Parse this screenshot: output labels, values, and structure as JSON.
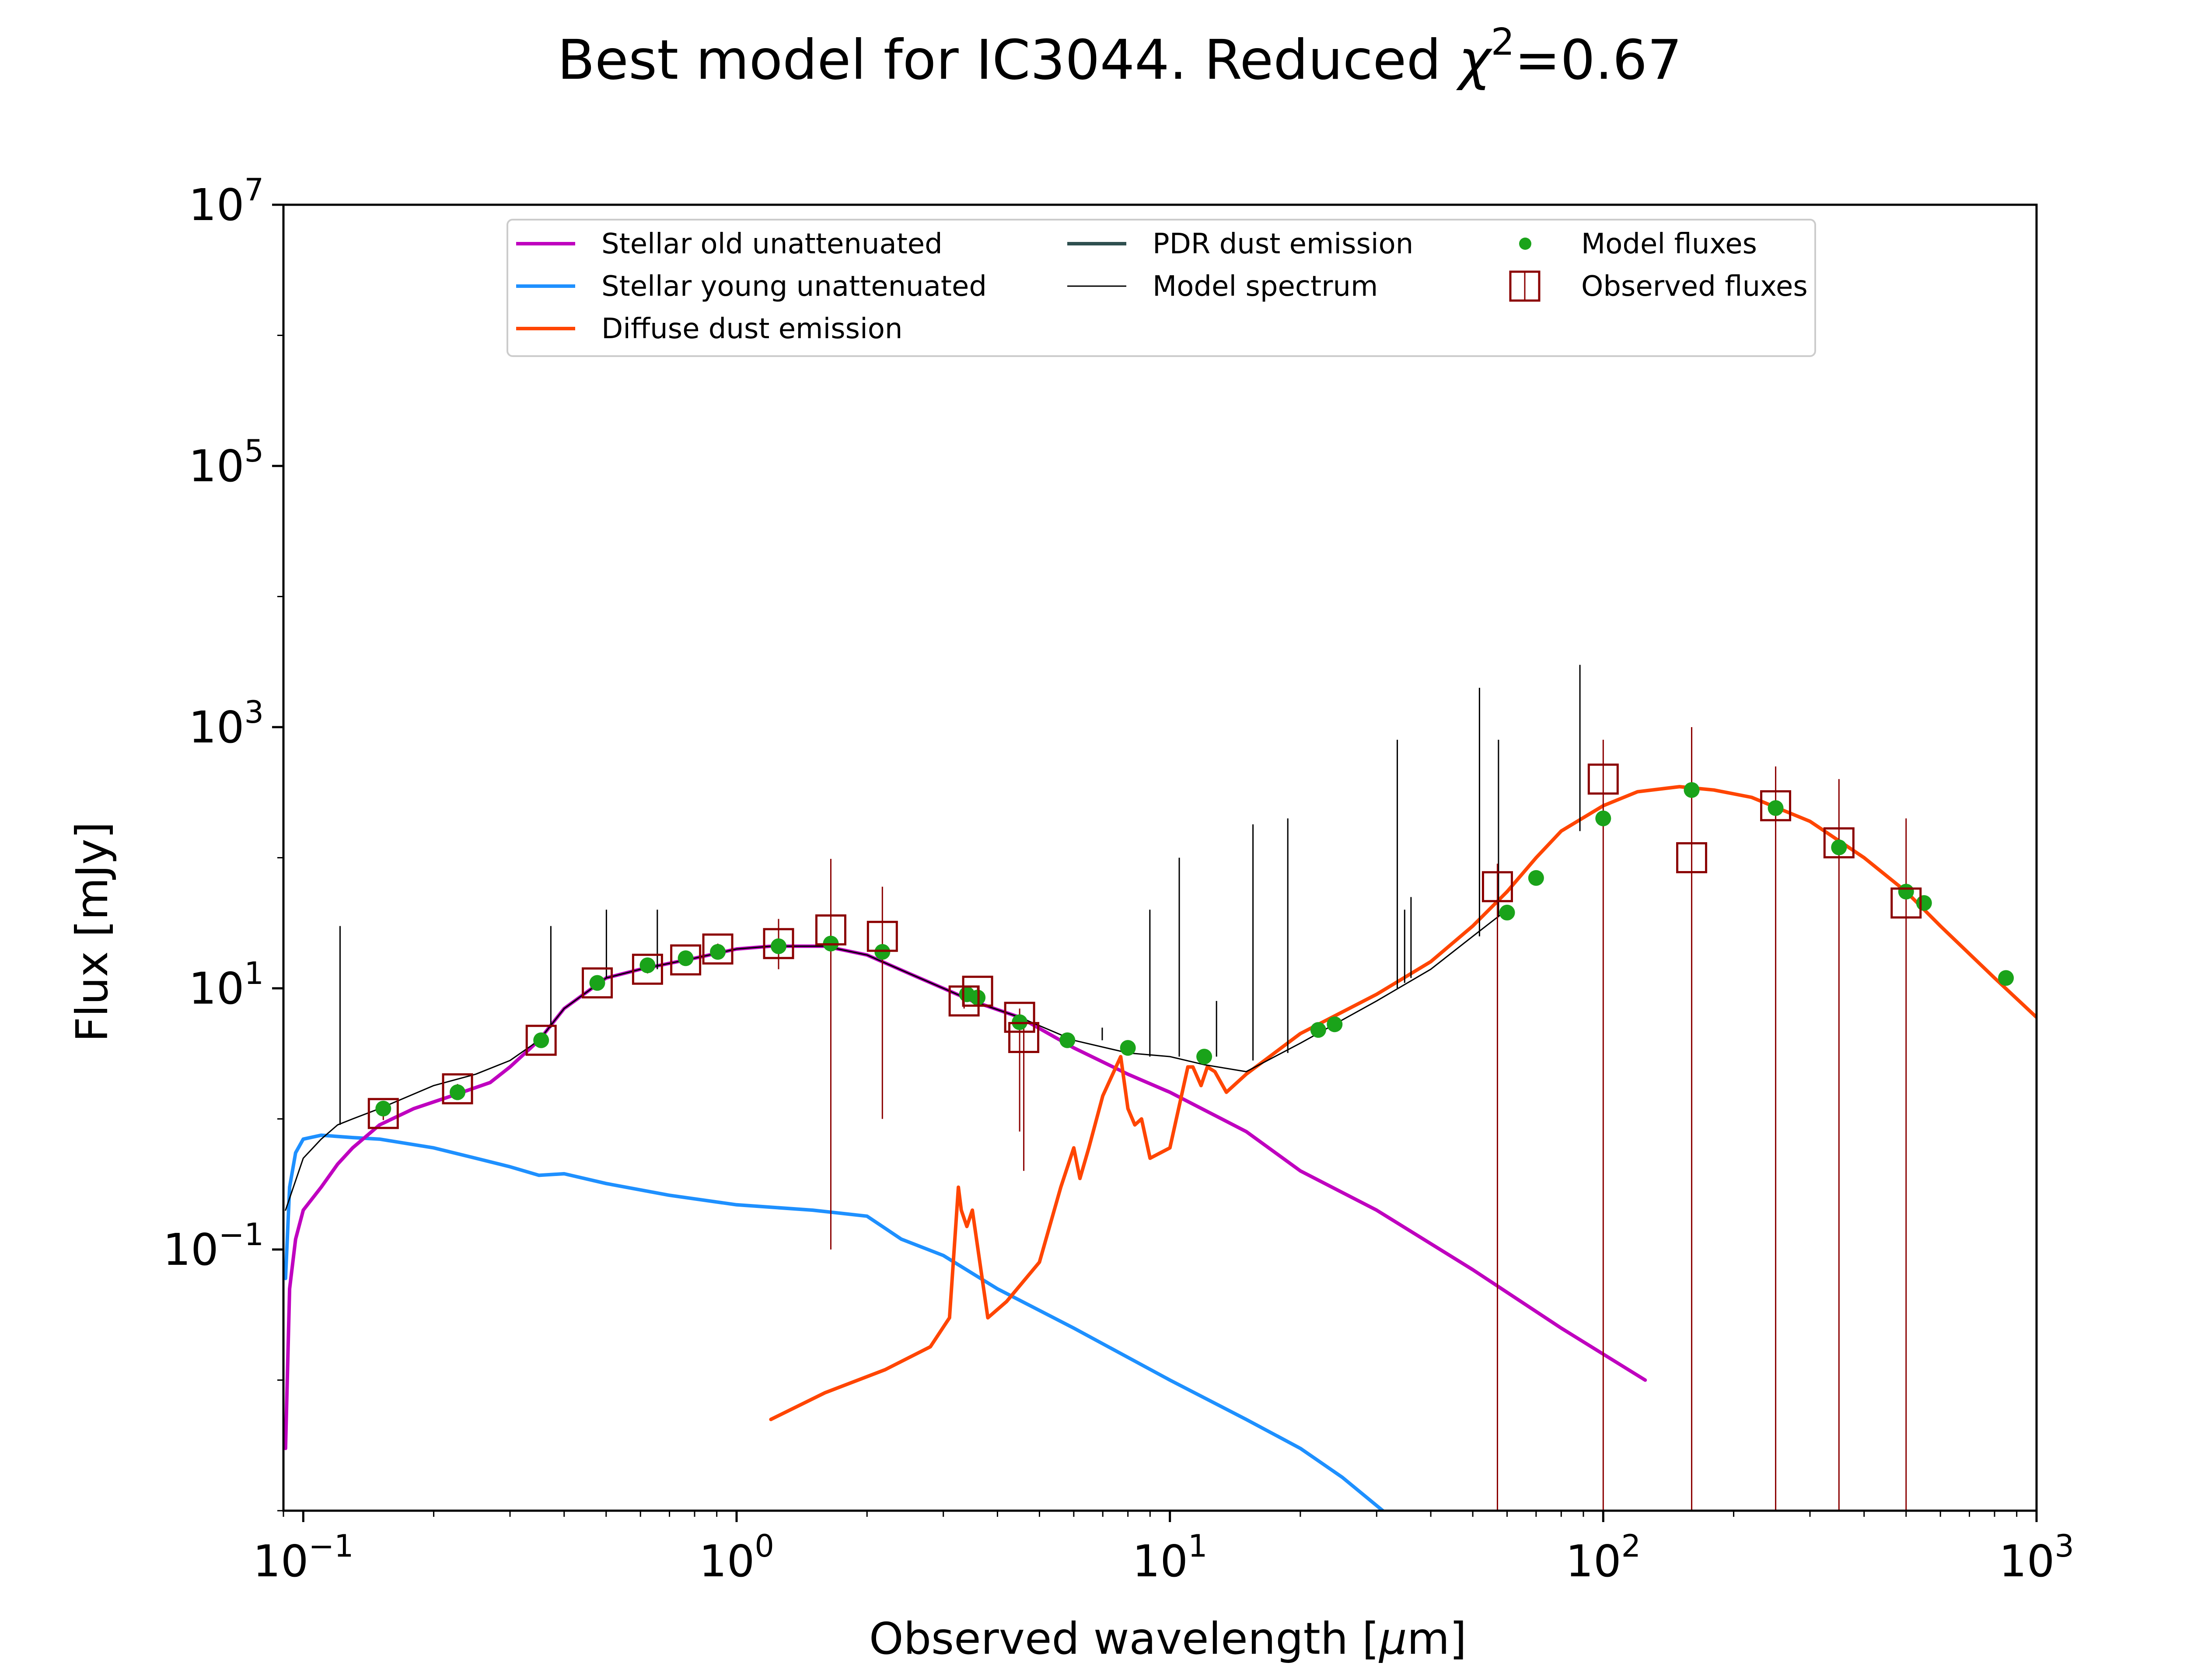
{
  "chart_data": {
    "type": "line",
    "title": "Best model for IC3044. Reduced ",
    "title_symbol": "χ",
    "title_symbol_exp": "2",
    "title_suffix": "=0.67",
    "xlabel": "Observed wavelength [",
    "xlabel_unit_symbol": "μ",
    "xlabel_unit_suffix": "m]",
    "ylabel": "Flux [mJy]",
    "x_scale": "log",
    "y_scale": "log",
    "xlim": [
      0.09,
      1000
    ],
    "ylim": [
      0.001,
      10000000
    ],
    "x_ticks": [
      {
        "value": 0.1,
        "base": "10",
        "exp": "−1"
      },
      {
        "value": 1,
        "base": "10",
        "exp": "0"
      },
      {
        "value": 10,
        "base": "10",
        "exp": "1"
      },
      {
        "value": 100,
        "base": "10",
        "exp": "2"
      },
      {
        "value": 1000,
        "base": "10",
        "exp": "3"
      }
    ],
    "y_ticks": [
      {
        "value": 0.1,
        "base": "10",
        "exp": "−1"
      },
      {
        "value": 10,
        "base": "10",
        "exp": "1"
      },
      {
        "value": 1000,
        "base": "10",
        "exp": "3"
      },
      {
        "value": 100000,
        "base": "10",
        "exp": "5"
      },
      {
        "value": 10000000,
        "base": "10",
        "exp": "7"
      }
    ],
    "grid": false,
    "legend_position": "top-center",
    "legend": [
      {
        "label": "Stellar old unattenuated",
        "kind": "line",
        "color": "#bf00bf"
      },
      {
        "label": "Stellar young unattenuated",
        "kind": "line",
        "color": "#1e90ff"
      },
      {
        "label": "Diffuse dust emission",
        "kind": "line",
        "color": "#ff4500"
      },
      {
        "label": "PDR dust emission",
        "kind": "line",
        "color": "#2f4f4f"
      },
      {
        "label": "Model spectrum",
        "kind": "thinline",
        "color": "#000000"
      },
      {
        "label": "Model fluxes",
        "kind": "dot",
        "color": "#1aa31a"
      },
      {
        "label": "Observed fluxes",
        "kind": "square",
        "color": "#8b0000"
      }
    ],
    "series": [
      {
        "name": "Stellar young unattenuated",
        "color": "#1e90ff",
        "x": [
          0.091,
          0.093,
          0.096,
          0.1,
          0.11,
          0.13,
          0.15,
          0.2,
          0.25,
          0.3,
          0.35,
          0.4,
          0.5,
          0.7,
          1.0,
          1.5,
          2.0,
          2.4,
          3.0,
          4.0,
          6.0,
          10,
          15,
          20,
          25,
          31
        ],
        "y": [
          0.06,
          0.3,
          0.55,
          0.7,
          0.75,
          0.72,
          0.7,
          0.6,
          0.5,
          0.43,
          0.37,
          0.38,
          0.32,
          0.26,
          0.22,
          0.2,
          0.18,
          0.12,
          0.09,
          0.05,
          0.025,
          0.01,
          0.005,
          0.003,
          0.0018,
          0.001
        ]
      },
      {
        "name": "Stellar old unattenuated",
        "color": "#bf00bf",
        "x": [
          0.091,
          0.093,
          0.096,
          0.1,
          0.11,
          0.12,
          0.13,
          0.15,
          0.18,
          0.22,
          0.27,
          0.3,
          0.35,
          0.4,
          0.5,
          0.6,
          0.8,
          1.0,
          1.2,
          1.6,
          2.0,
          2.5,
          3.0,
          3.5,
          4.5,
          6,
          8,
          10,
          15,
          20,
          30,
          50,
          80,
          125
        ],
        "y": [
          0.003,
          0.05,
          0.12,
          0.2,
          0.3,
          0.45,
          0.6,
          0.9,
          1.2,
          1.5,
          1.9,
          2.5,
          4,
          7,
          12,
          14,
          17,
          20,
          21,
          21,
          18,
          13,
          10,
          8,
          6,
          3.5,
          2.2,
          1.6,
          0.8,
          0.4,
          0.2,
          0.07,
          0.025,
          0.01
        ]
      },
      {
        "name": "Diffuse dust emission",
        "color": "#ff4500",
        "x": [
          1.2,
          1.6,
          2.2,
          2.8,
          3.1,
          3.25,
          3.3,
          3.4,
          3.5,
          3.8,
          4.2,
          5,
          5.6,
          6.0,
          6.2,
          6.5,
          7.0,
          7.7,
          8.0,
          8.3,
          8.6,
          9.0,
          10.0,
          11.0,
          11.3,
          11.8,
          12.2,
          12.7,
          13.5,
          15,
          20,
          30,
          40,
          50,
          60,
          70,
          80,
          100,
          120,
          150,
          180,
          220,
          300,
          400,
          500,
          600,
          800,
          1000
        ],
        "y": [
          0.005,
          0.008,
          0.012,
          0.018,
          0.03,
          0.3,
          0.2,
          0.15,
          0.2,
          0.03,
          0.04,
          0.08,
          0.3,
          0.6,
          0.35,
          0.6,
          1.5,
          3,
          1.2,
          0.9,
          1.0,
          0.5,
          0.6,
          2.5,
          2.5,
          1.8,
          2.5,
          2.3,
          1.6,
          2.2,
          4.5,
          9,
          16,
          30,
          55,
          100,
          160,
          250,
          320,
          350,
          330,
          290,
          190,
          100,
          55,
          30,
          12,
          6
        ]
      },
      {
        "name": "Model spectrum",
        "color": "#000000",
        "x": [
          0.091,
          0.1,
          0.11,
          0.12,
          0.13,
          0.15,
          0.2,
          0.25,
          0.3,
          0.35,
          0.4,
          0.5,
          0.6,
          0.8,
          1.0,
          1.2,
          1.6,
          2.0,
          2.5,
          3.0,
          3.5,
          4.5,
          6,
          8,
          10,
          12,
          15,
          20,
          30,
          40,
          50,
          60
        ],
        "y": [
          0.2,
          0.5,
          0.7,
          0.9,
          1.0,
          1.2,
          1.8,
          2.2,
          2.8,
          4,
          7,
          12,
          14,
          17,
          20,
          21,
          21,
          18,
          13,
          10,
          8,
          6,
          4,
          3.2,
          3,
          2.6,
          2.3,
          3.8,
          8,
          14,
          25,
          40
        ]
      }
    ],
    "emission_lines": [
      {
        "x": 0.1216,
        "base": 0.9,
        "peak": 30
      },
      {
        "x": 0.3727,
        "base": 5,
        "peak": 30
      },
      {
        "x": 0.5007,
        "base": 12,
        "peak": 40
      },
      {
        "x": 0.6563,
        "base": 14,
        "peak": 40
      },
      {
        "x": 6.98,
        "base": 4,
        "peak": 5
      },
      {
        "x": 8.99,
        "base": 3,
        "peak": 40
      },
      {
        "x": 10.51,
        "base": 3,
        "peak": 100
      },
      {
        "x": 12.81,
        "base": 3,
        "peak": 8
      },
      {
        "x": 15.55,
        "base": 2.8,
        "peak": 180
      },
      {
        "x": 18.71,
        "base": 3.2,
        "peak": 200
      },
      {
        "x": 33.48,
        "base": 10,
        "peak": 800
      },
      {
        "x": 34.81,
        "base": 11,
        "peak": 40
      },
      {
        "x": 36.01,
        "base": 12,
        "peak": 50
      },
      {
        "x": 51.81,
        "base": 25,
        "peak": 2000
      },
      {
        "x": 57.32,
        "base": 35,
        "peak": 800
      },
      {
        "x": 88.36,
        "base": 160,
        "peak": 3000
      }
    ],
    "model_fluxes": {
      "x": [
        0.153,
        0.227,
        0.354,
        0.477,
        0.623,
        0.763,
        0.905,
        1.25,
        1.65,
        2.17,
        3.4,
        3.6,
        4.5,
        5.8,
        8.0,
        12,
        22,
        24,
        60,
        70,
        100,
        160,
        250,
        350,
        500,
        550,
        850
      ],
      "y": [
        1.2,
        1.6,
        4,
        11,
        15,
        17,
        19,
        21,
        22,
        19,
        9,
        8.5,
        5.5,
        4,
        3.5,
        3,
        4.8,
        5.3,
        38,
        70,
        200,
        330,
        240,
        120,
        55,
        45,
        12
      ]
    },
    "observed_fluxes": [
      {
        "x": 0.153,
        "y": 1.1,
        "err": [
          0.12,
          0.12
        ]
      },
      {
        "x": 0.227,
        "y": 1.7,
        "err": [
          0.15,
          0.15
        ]
      },
      {
        "x": 0.354,
        "y": 4,
        "err": [
          0.4,
          0.4
        ]
      },
      {
        "x": 0.477,
        "y": 11,
        "err": [
          0.8,
          0.8
        ]
      },
      {
        "x": 0.623,
        "y": 14,
        "err": [
          1,
          1
        ]
      },
      {
        "x": 0.763,
        "y": 16.5,
        "err": [
          1.2,
          1.2
        ]
      },
      {
        "x": 0.905,
        "y": 20,
        "err": [
          2,
          2
        ]
      },
      {
        "x": 1.25,
        "y": 22,
        "err": [
          8,
          12
        ]
      },
      {
        "x": 1.65,
        "y": 28,
        "err": [
          27.9,
          70
        ]
      },
      {
        "x": 2.17,
        "y": 25,
        "err": [
          24,
          35
        ]
      },
      {
        "x": 3.35,
        "y": 8,
        "err": [
          1,
          1
        ]
      },
      {
        "x": 3.6,
        "y": 9.5,
        "err": [
          1,
          1
        ]
      },
      {
        "x": 4.5,
        "y": 6,
        "err": [
          5.2,
          1
        ]
      },
      {
        "x": 4.6,
        "y": 4.2,
        "err": [
          3.8,
          1
        ]
      },
      {
        "x": 57,
        "y": 60,
        "err": [
          59.999,
          30
        ]
      },
      {
        "x": 100,
        "y": 400,
        "err": [
          399.999,
          400
        ]
      },
      {
        "x": 160,
        "y": 100,
        "err": [
          99.999,
          900
        ]
      },
      {
        "x": 250,
        "y": 250,
        "err": [
          249.999,
          250
        ]
      },
      {
        "x": 350,
        "y": 130,
        "err": [
          129.999,
          270
        ]
      },
      {
        "x": 500,
        "y": 45,
        "err": [
          44.999,
          155
        ]
      }
    ]
  }
}
